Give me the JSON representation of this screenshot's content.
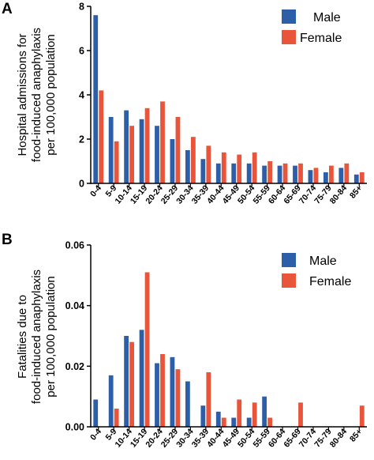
{
  "colors": {
    "male": "#2D5FA8",
    "female": "#E8553A",
    "axis": "#000000"
  },
  "chart_data": [
    {
      "panel": "A",
      "type": "bar",
      "ylabel_lines": [
        "Hospital admissions for",
        "food-induced anaphylaxis",
        "per 100,000 population"
      ],
      "ylim": [
        0,
        8
      ],
      "yticks": [
        "0",
        "2",
        "4",
        "6",
        "8"
      ],
      "legend_placement": "top-right",
      "categories": [
        "0-4",
        "5-9",
        "10-14",
        "15-19",
        "20-24",
        "25-29",
        "30-34",
        "35-39",
        "40-44",
        "45-49",
        "50-54",
        "55-59",
        "60-64",
        "65-69",
        "70-74",
        "75-79",
        "80-84",
        "85+"
      ],
      "series": [
        {
          "name": "Male",
          "values": [
            7.6,
            3.0,
            3.3,
            2.9,
            2.6,
            2.0,
            1.5,
            1.1,
            0.9,
            0.9,
            0.9,
            0.8,
            0.8,
            0.8,
            0.6,
            0.5,
            0.7,
            0.4
          ]
        },
        {
          "name": "Female",
          "values": [
            4.2,
            1.9,
            2.6,
            3.4,
            3.7,
            3.0,
            2.1,
            1.7,
            1.4,
            1.3,
            1.4,
            1.0,
            0.9,
            0.9,
            0.7,
            0.8,
            0.9,
            0.5
          ]
        }
      ]
    },
    {
      "panel": "B",
      "type": "bar",
      "ylabel_lines": [
        "Fatalities due to",
        "food-induced anaphylaxis",
        "per 100,000 population"
      ],
      "ylim": [
        0,
        0.06
      ],
      "yticks": [
        "0.00",
        "0.02",
        "0.04",
        "0.06"
      ],
      "legend_placement": "top-right",
      "categories": [
        "0-4",
        "5-9",
        "10-14",
        "15-19",
        "20-24",
        "25-29",
        "30-34",
        "35-39",
        "40-44",
        "45-49",
        "50-54",
        "55-59",
        "60-64",
        "65-69",
        "70-74",
        "75-79",
        "80-84",
        "85+"
      ],
      "series": [
        {
          "name": "Male",
          "values": [
            0.009,
            0.017,
            0.03,
            0.032,
            0.021,
            0.023,
            0.015,
            0.007,
            0.005,
            0.003,
            0.003,
            0.01,
            0,
            0,
            0,
            0,
            0,
            0
          ]
        },
        {
          "name": "Female",
          "values": [
            0,
            0.006,
            0.028,
            0.051,
            0.024,
            0.019,
            0,
            0.018,
            0.003,
            0.009,
            0.008,
            0.003,
            0,
            0.008,
            0,
            0,
            0,
            0.007
          ]
        }
      ]
    }
  ]
}
